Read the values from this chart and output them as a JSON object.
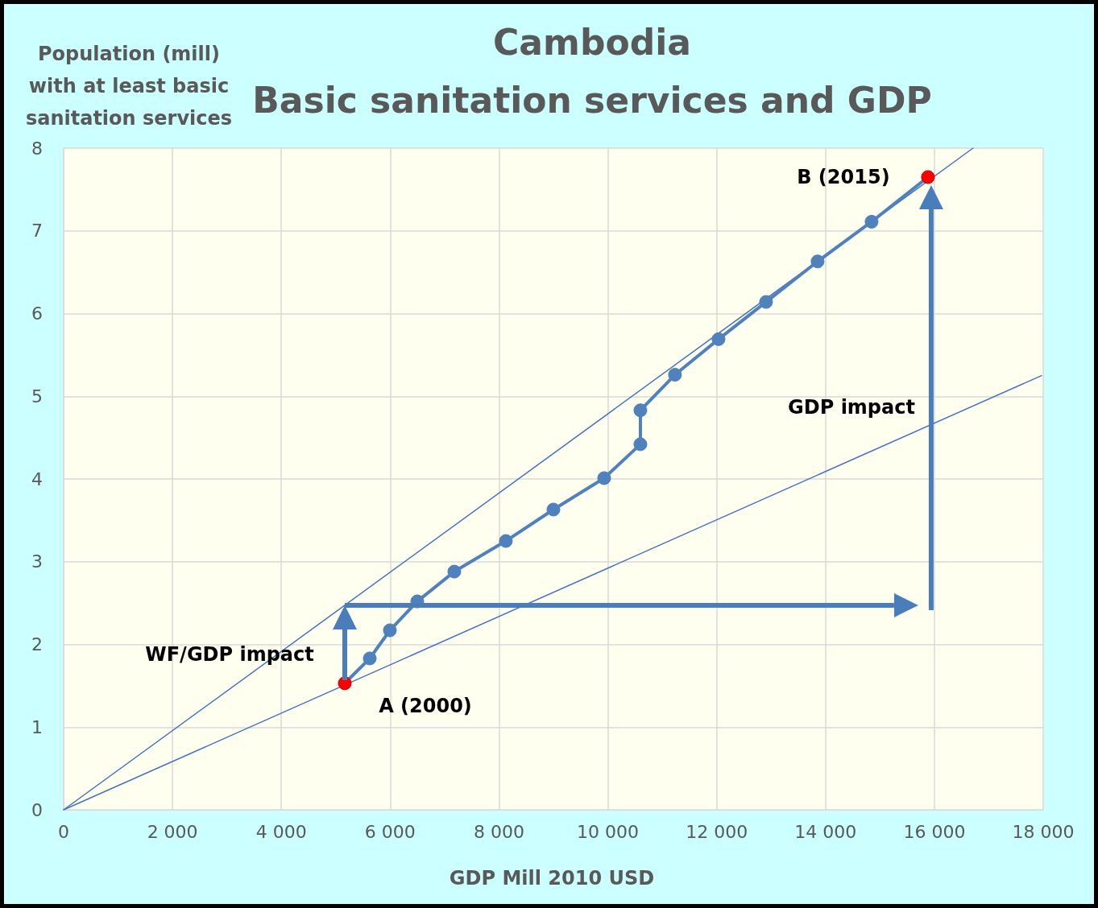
{
  "chart_data": {
    "type": "line",
    "title": "Cambodia",
    "subtitle": "Basic sanitation services and GDP",
    "xlabel": "GDP Mill 2010 USD",
    "ylabel": "Population (mill)\nwith at least basic\nsanitation services",
    "xlim": [
      0,
      18000
    ],
    "xticks": [
      0,
      {
        "value": 2000,
        "label": "2 000"
      },
      {
        "value": 4000,
        "label": "4 000"
      },
      {
        "value": 6000,
        "label": "6 000"
      },
      {
        "value": 8000,
        "label": "8 000"
      },
      {
        "value": 10000,
        "label": "10 000"
      },
      {
        "value": 12000,
        "label": "12 000"
      },
      {
        "value": 14000,
        "label": "14 000"
      },
      {
        "value": 16000,
        "label": "16 000"
      },
      {
        "value": 18000,
        "label": "18 000"
      }
    ],
    "ylim": [
      0,
      8
    ],
    "yticks": [
      0,
      1,
      2,
      3,
      4,
      5,
      6,
      7,
      8
    ],
    "grid": true,
    "series": [
      {
        "color": "#4f81bd",
        "marker": "circle",
        "x": [
          5166,
          5625,
          5995,
          6498,
          7179,
          8126,
          9000,
          9932,
          10598,
          10598,
          11234,
          12034,
          12907,
          13854,
          14846,
          15882
        ],
        "values": [
          1.53,
          1.83,
          2.17,
          2.52,
          2.88,
          3.25,
          3.63,
          4.01,
          4.42,
          4.83,
          5.26,
          5.69,
          6.14,
          6.63,
          7.11,
          7.65
        ],
        "colors": [
          "#ff0000",
          "#4f81bd",
          "#4f81bd",
          "#4f81bd",
          "#4f81bd",
          "#4f81bd",
          "#4f81bd",
          "#4f81bd",
          "#4f81bd",
          "#4f81bd",
          "#4f81bd",
          "#4f81bd",
          "#4f81bd",
          "#4f81bd",
          "#4f81bd",
          "#ff0000"
        ]
      },
      {
        "color": "#4472c4",
        "marker": "none",
        "x": [
          0,
          16711
        ],
        "values": [
          0,
          8
        ]
      },
      {
        "color": "#4472c4",
        "marker": "none",
        "x": [
          0,
          17969
        ],
        "values": [
          0,
          5.25
        ]
      }
    ],
    "annotations": [
      {
        "text": "A (2000)",
        "x": 5166,
        "y": 1.53
      },
      {
        "text": "B (2015)",
        "x": 15882,
        "y": 7.65
      },
      "WF/GDP impact",
      "GDP impact"
    ]
  }
}
